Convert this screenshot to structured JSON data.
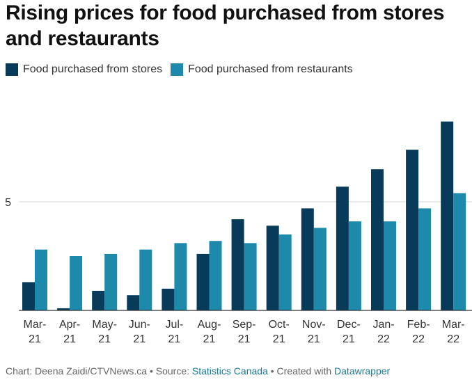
{
  "header": {
    "title": "Rising prices for food purchased from stores and restaurants"
  },
  "legend": [
    {
      "label": "Food purchased from stores",
      "color": "#083a5a"
    },
    {
      "label": "Food purchased from restaurants",
      "color": "#1d8aac"
    }
  ],
  "chart_data": {
    "type": "bar",
    "title": "Rising prices for food purchased from stores and restaurants",
    "xlabel": "",
    "ylabel": "",
    "grid": true,
    "ylim": [
      0,
      9
    ],
    "yticks": [
      5
    ],
    "categories": [
      [
        "Mar-",
        "21"
      ],
      [
        "Apr-",
        "21"
      ],
      [
        "May-",
        "21"
      ],
      [
        "Jun-",
        "21"
      ],
      [
        "Jul-",
        "21"
      ],
      [
        "Aug-",
        "21"
      ],
      [
        "Sep-",
        "21"
      ],
      [
        "Oct-",
        "21"
      ],
      [
        "Nov-",
        "21"
      ],
      [
        "Dec-",
        "21"
      ],
      [
        "Jan-",
        "22"
      ],
      [
        "Feb-",
        "22"
      ],
      [
        "Mar-",
        "22"
      ]
    ],
    "series": [
      {
        "name": "Food purchased from stores",
        "color": "#083a5a",
        "values": [
          1.3,
          0.1,
          0.9,
          0.7,
          1.0,
          2.6,
          4.2,
          3.9,
          4.7,
          5.7,
          6.5,
          7.4,
          8.7
        ]
      },
      {
        "name": "Food purchased from restaurants",
        "color": "#1d8aac",
        "values": [
          2.8,
          2.5,
          2.6,
          2.8,
          3.1,
          3.2,
          3.1,
          3.5,
          3.8,
          4.1,
          4.1,
          4.7,
          5.4
        ]
      }
    ],
    "legend_position": "top-left"
  },
  "footer": {
    "chart_prefix": "Chart: Deena Zaidi/CTVNews.ca • Source: ",
    "source_link": "Statistics Canada",
    "created_prefix": " • Created with ",
    "tool_link": "Datawrapper"
  }
}
